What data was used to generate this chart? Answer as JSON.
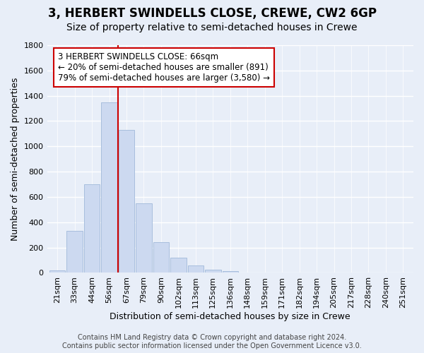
{
  "title": "3, HERBERT SWINDELLS CLOSE, CREWE, CW2 6GP",
  "subtitle": "Size of property relative to semi-detached houses in Crewe",
  "xlabel": "Distribution of semi-detached houses by size in Crewe",
  "ylabel": "Number of semi-detached properties",
  "bin_labels": [
    "21sqm",
    "33sqm",
    "44sqm",
    "56sqm",
    "67sqm",
    "79sqm",
    "90sqm",
    "102sqm",
    "113sqm",
    "125sqm",
    "136sqm",
    "148sqm",
    "159sqm",
    "171sqm",
    "182sqm",
    "194sqm",
    "205sqm",
    "217sqm",
    "228sqm",
    "240sqm",
    "251sqm"
  ],
  "bar_values": [
    20,
    330,
    700,
    1350,
    1130,
    550,
    245,
    120,
    60,
    25,
    15,
    5,
    2,
    0,
    0,
    0,
    0,
    0,
    0,
    0,
    0
  ],
  "bar_color": "#ccd9f0",
  "bar_edge_color": "#a8bedd",
  "vline_x_index": 3,
  "vline_color": "#cc0000",
  "annotation_title": "3 HERBERT SWINDELLS CLOSE: 66sqm",
  "annotation_line1": "← 20% of semi-detached houses are smaller (891)",
  "annotation_line2": "79% of semi-detached houses are larger (3,580) →",
  "annotation_box_color": "#ffffff",
  "annotation_box_edge": "#cc0000",
  "ylim": [
    0,
    1800
  ],
  "yticks": [
    0,
    200,
    400,
    600,
    800,
    1000,
    1200,
    1400,
    1600,
    1800
  ],
  "footer_line1": "Contains HM Land Registry data © Crown copyright and database right 2024.",
  "footer_line2": "Contains public sector information licensed under the Open Government Licence v3.0.",
  "bg_color": "#e8eef8",
  "plot_bg_color": "#e8eef8",
  "title_fontsize": 12,
  "subtitle_fontsize": 10,
  "axis_label_fontsize": 9,
  "tick_fontsize": 8,
  "footer_fontsize": 7
}
